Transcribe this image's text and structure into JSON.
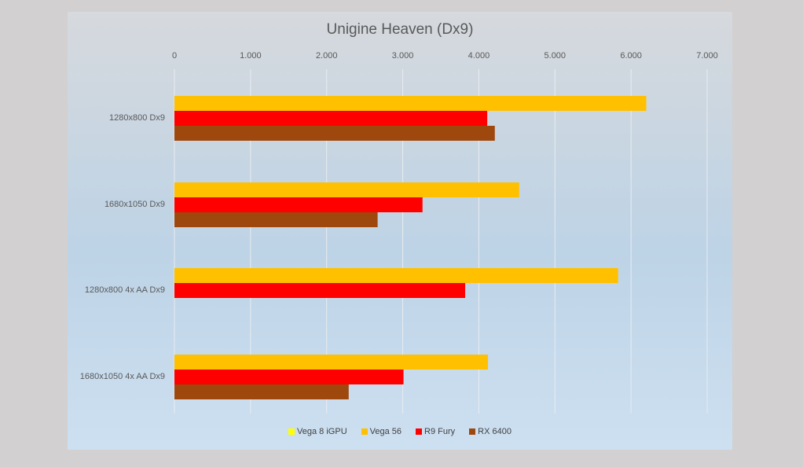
{
  "chart_data": {
    "type": "bar",
    "orientation": "horizontal",
    "title": "Unigine Heaven (Dx9)",
    "xlabel": "",
    "ylabel": "",
    "xlim": [
      0,
      7000
    ],
    "x_ticks": [
      "0",
      "1.000",
      "2.000",
      "3.000",
      "4.000",
      "5.000",
      "6.000",
      "7.000"
    ],
    "x_tick_values": [
      0,
      1000,
      2000,
      3000,
      4000,
      5000,
      6000,
      7000
    ],
    "x_axis_position": "top",
    "grid": "vertical",
    "legend_position": "bottom",
    "categories": [
      "1280x800 Dx9",
      "1680x1050 Dx9",
      "1280x800 4x AA Dx9",
      "1680x1050 4x AA Dx9"
    ],
    "series": [
      {
        "name": "Vega 8 iGPU",
        "color": "#ffff00",
        "values": [
          null,
          null,
          null,
          null
        ]
      },
      {
        "name": "Vega 56",
        "color": "#ffc000",
        "values": [
          6200,
          4530,
          5830,
          4120
        ]
      },
      {
        "name": "R9 Fury",
        "color": "#ff0000",
        "values": [
          4110,
          3260,
          3820,
          3010
        ]
      },
      {
        "name": "RX 6400",
        "color": "#9e480e",
        "values": [
          4210,
          2670,
          null,
          2290
        ]
      }
    ]
  }
}
